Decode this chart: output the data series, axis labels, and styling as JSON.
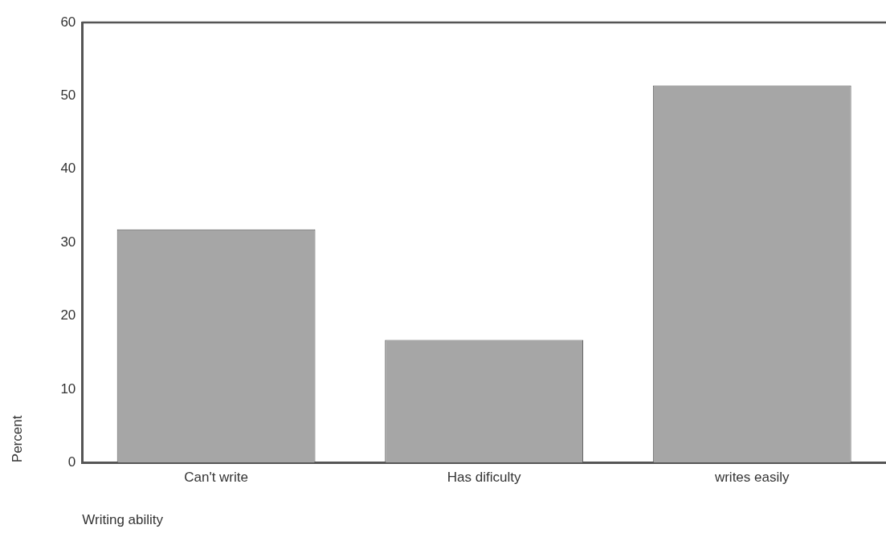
{
  "chart_data": {
    "type": "bar",
    "xlabel": "Writing ability",
    "ylabel": "Percent",
    "categories": [
      "Can't write",
      "Has dificulty",
      "writes easily"
    ],
    "values": [
      31.8,
      16.7,
      51.4
    ],
    "color": "#a6a6a6",
    "ylim": [
      0,
      60
    ],
    "yticks": [
      0,
      10,
      20,
      30,
      40,
      50,
      60
    ],
    "grid": false
  }
}
